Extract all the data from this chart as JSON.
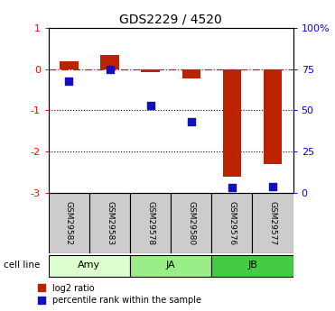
{
  "title": "GDS2229 / 4520",
  "samples": [
    "GSM29582",
    "GSM29583",
    "GSM29578",
    "GSM29580",
    "GSM29576",
    "GSM29577"
  ],
  "cell_lines": [
    {
      "label": "Amy",
      "indices": [
        0,
        1
      ],
      "color": "#ddffd0"
    },
    {
      "label": "JA",
      "indices": [
        2,
        3
      ],
      "color": "#99ee88"
    },
    {
      "label": "JB",
      "indices": [
        4,
        5
      ],
      "color": "#44cc44"
    }
  ],
  "log2_ratio": [
    0.2,
    0.35,
    -0.08,
    -0.22,
    -2.6,
    -2.3
  ],
  "percentile_rank": [
    68,
    75,
    53,
    43,
    3,
    4
  ],
  "ylim_left": [
    -3.0,
    1.0
  ],
  "ylim_right": [
    0,
    100
  ],
  "right_ticks": [
    0,
    25,
    50,
    75,
    100
  ],
  "right_tick_labels": [
    "0",
    "25",
    "50",
    "75",
    "100%"
  ],
  "left_ticks": [
    -3,
    -2,
    -1,
    0,
    1
  ],
  "bar_color": "#bb2200",
  "dot_color": "#1111bb",
  "bar_width": 0.45,
  "dot_size": 40,
  "sample_box_color": "#cccccc",
  "bg_color": "#ffffff"
}
